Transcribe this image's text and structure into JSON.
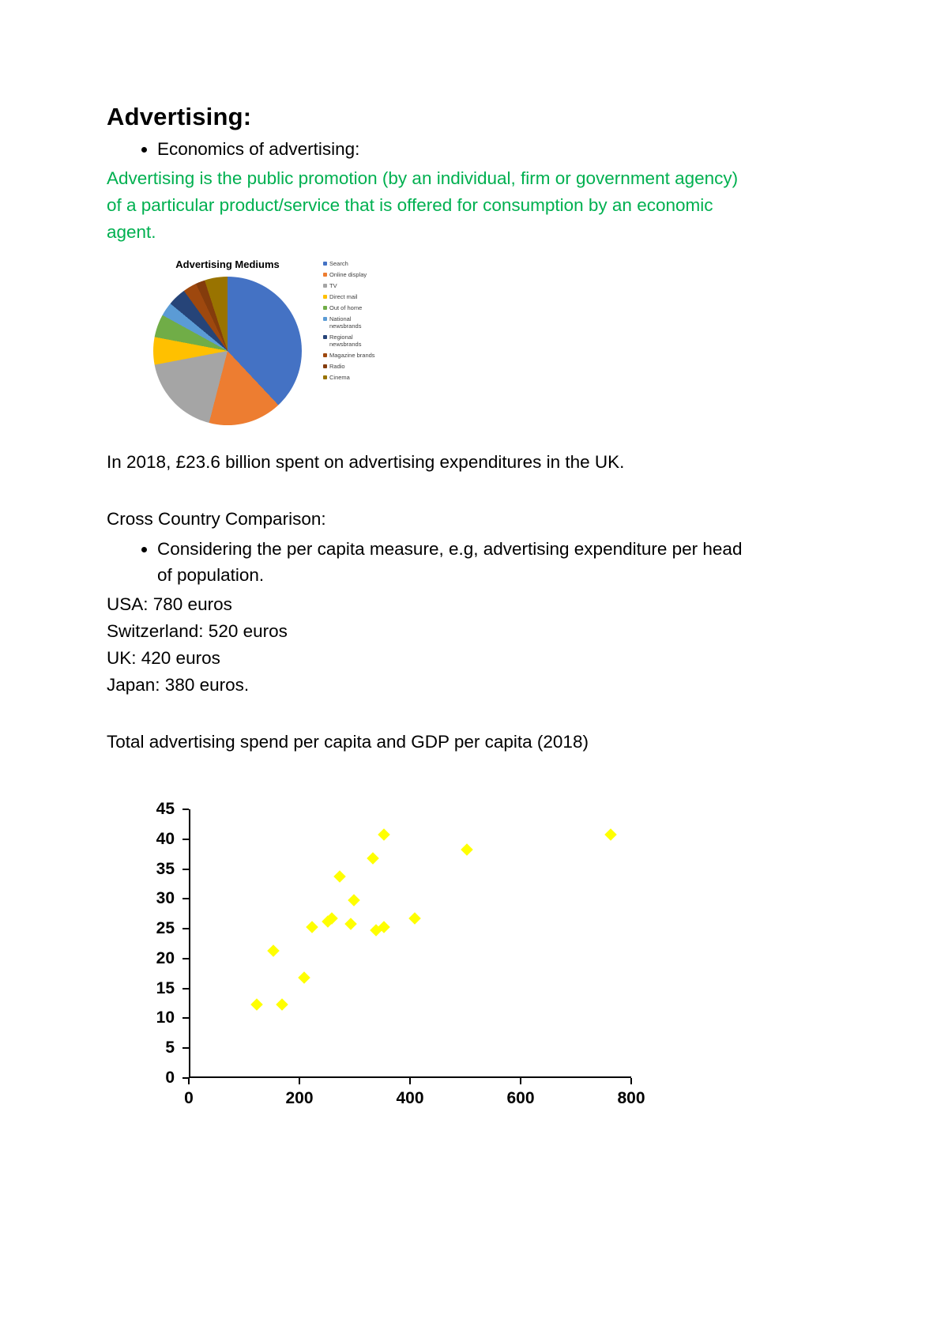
{
  "doc": {
    "title": "Advertising:",
    "bullet_economics": "Economics of advertising:",
    "definition": "Advertising is the public promotion (by an individual, firm or government agency) of a particular product/service that is offered for consumption by an economic agent.",
    "spend_2018": "In 2018, £23.6 billion spent on advertising expenditures in the UK.",
    "cross_country_heading": "Cross Country Comparison:",
    "bullet_per_capita": "Considering the per capita measure, e.g, advertising expenditure per head of population.",
    "country_lines": [
      "USA: 780 euros",
      "Switzerland: 520 euros",
      "UK: 420 euros",
      "Japan: 380 euros."
    ],
    "scatter_caption": "Total advertising spend per capita and GDP per capita (2018)",
    "text_color": "#000000",
    "green_color": "#00B050"
  },
  "chart_data": [
    {
      "type": "pie",
      "title": "Advertising Mediums",
      "legend_position": "right",
      "slices": [
        {
          "label": "Search",
          "value": 38,
          "color": "#4472C4"
        },
        {
          "label": "Online display",
          "value": 16,
          "color": "#ED7D31"
        },
        {
          "label": "TV",
          "value": 18,
          "color": "#A5A5A5"
        },
        {
          "label": "Direct mail",
          "value": 6,
          "color": "#FFC000"
        },
        {
          "label": "Out of home",
          "value": 5,
          "color": "#70AD47"
        },
        {
          "label": "National newsbrands",
          "value": 3,
          "color": "#5B9BD5"
        },
        {
          "label": "Regional newsbrands",
          "value": 4,
          "color": "#264478"
        },
        {
          "label": "Magazine brands",
          "value": 3,
          "color": "#9E480E"
        },
        {
          "label": "Radio",
          "value": 2,
          "color": "#843C0C"
        },
        {
          "label": "Cinema",
          "value": 5,
          "color": "#997300"
        }
      ]
    },
    {
      "type": "scatter",
      "title": "",
      "marker_shape": "diamond",
      "marker_color": "#FFFF00",
      "xlabel": "",
      "ylabel": "",
      "xlim": [
        0,
        800
      ],
      "ylim": [
        0,
        45
      ],
      "x_ticks": [
        0,
        200,
        400,
        600,
        800
      ],
      "y_ticks": [
        0,
        5,
        10,
        15,
        20,
        25,
        30,
        35,
        40,
        45
      ],
      "grid": false,
      "legend": "none",
      "points": [
        [
          120,
          12
        ],
        [
          150,
          21
        ],
        [
          165,
          12
        ],
        [
          205,
          16.5
        ],
        [
          220,
          25
        ],
        [
          248,
          26
        ],
        [
          255,
          26.5
        ],
        [
          270,
          33.5
        ],
        [
          290,
          25.5
        ],
        [
          295,
          29.5
        ],
        [
          330,
          36.5
        ],
        [
          335,
          24.5
        ],
        [
          350,
          25
        ],
        [
          350,
          40.5
        ],
        [
          405,
          26.5
        ],
        [
          500,
          38
        ],
        [
          760,
          40.5
        ]
      ]
    }
  ]
}
